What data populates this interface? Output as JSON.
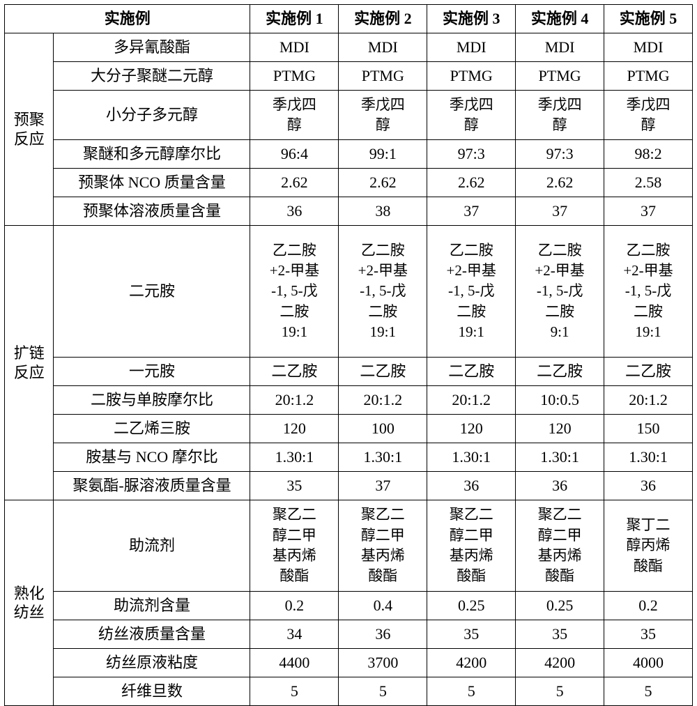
{
  "header": {
    "param_label": "实施例",
    "cols": [
      "实施例 1",
      "实施例 2",
      "实施例 3",
      "实施例 4",
      "实施例 5"
    ]
  },
  "groups": [
    {
      "label": "预聚\n反应"
    },
    {
      "label": "扩链\n反应"
    },
    {
      "label": "熟化\n纺丝"
    }
  ],
  "rows": {
    "r1": {
      "param": "多异氰酸酯",
      "v": [
        "MDI",
        "MDI",
        "MDI",
        "MDI",
        "MDI"
      ]
    },
    "r2": {
      "param": "大分子聚醚二元醇",
      "v": [
        "PTMG",
        "PTMG",
        "PTMG",
        "PTMG",
        "PTMG"
      ]
    },
    "r3": {
      "param": "小分子多元醇",
      "v": [
        "季戊四\n醇",
        "季戊四\n醇",
        "季戊四\n醇",
        "季戊四\n醇",
        "季戊四\n醇"
      ]
    },
    "r4": {
      "param": "聚醚和多元醇摩尔比",
      "v": [
        "96:4",
        "99:1",
        "97:3",
        "97:3",
        "98:2"
      ]
    },
    "r5": {
      "param": "预聚体 NCO 质量含量",
      "v": [
        "2.62",
        "2.62",
        "2.62",
        "2.62",
        "2.58"
      ]
    },
    "r6": {
      "param": "预聚体溶液质量含量",
      "v": [
        "36",
        "38",
        "37",
        "37",
        "37"
      ]
    },
    "r7": {
      "param": "二元胺",
      "v": [
        "乙二胺\n+2-甲基\n-1, 5-戊\n二胺\n19:1",
        "乙二胺\n+2-甲基\n-1, 5-戊\n二胺\n19:1",
        "乙二胺\n+2-甲基\n-1, 5-戊\n二胺\n19:1",
        "乙二胺\n+2-甲基\n-1, 5-戊\n二胺\n9:1",
        "乙二胺\n+2-甲基\n-1, 5-戊\n二胺\n19:1"
      ]
    },
    "r8": {
      "param": "一元胺",
      "v": [
        "二乙胺",
        "二乙胺",
        "二乙胺",
        "二乙胺",
        "二乙胺"
      ]
    },
    "r9": {
      "param": "二胺与单胺摩尔比",
      "v": [
        "20:1.2",
        "20:1.2",
        "20:1.2",
        "10:0.5",
        "20:1.2"
      ]
    },
    "r10": {
      "param": "二乙烯三胺",
      "v": [
        "120",
        "100",
        "120",
        "120",
        "150"
      ]
    },
    "r11": {
      "param": "胺基与 NCO 摩尔比",
      "v": [
        "1.30:1",
        "1.30:1",
        "1.30:1",
        "1.30:1",
        "1.30:1"
      ]
    },
    "r12": {
      "param": "聚氨酯-脲溶液质量含量",
      "v": [
        "35",
        "37",
        "36",
        "36",
        "36"
      ]
    },
    "r13": {
      "param": "助流剂",
      "v": [
        "聚乙二\n醇二甲\n基丙烯\n酸酯",
        "聚乙二\n醇二甲\n基丙烯\n酸酯",
        "聚乙二\n醇二甲\n基丙烯\n酸酯",
        "聚乙二\n醇二甲\n基丙烯\n酸酯",
        "聚丁二\n醇丙烯\n酸酯"
      ]
    },
    "r14": {
      "param": "助流剂含量",
      "v": [
        "0.2",
        "0.4",
        "0.25",
        "0.25",
        "0.2"
      ]
    },
    "r15": {
      "param": "纺丝液质量含量",
      "v": [
        "34",
        "36",
        "35",
        "35",
        "35"
      ]
    },
    "r16": {
      "param": "纺丝原液粘度",
      "v": [
        "4400",
        "3700",
        "4200",
        "4200",
        "4000"
      ]
    },
    "r17": {
      "param": "纤维旦数",
      "v": [
        "5",
        "5",
        "5",
        "5",
        "5"
      ]
    }
  },
  "style": {
    "border_color": "#000000",
    "background": "#ffffff",
    "font_family": "SimSun",
    "font_size_pt": 16,
    "header_bold": true
  }
}
